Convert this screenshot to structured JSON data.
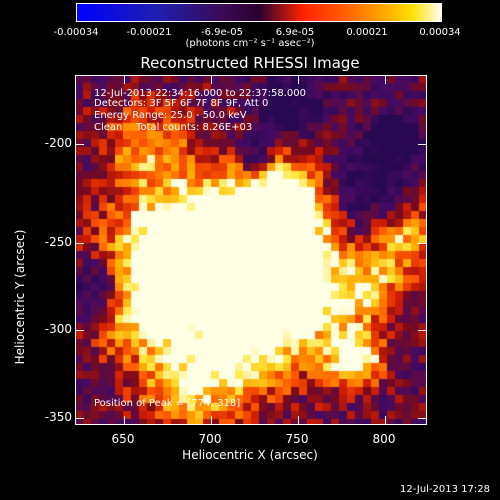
{
  "colorbar": {
    "ticks": [
      "-0.00034",
      "-0.00021",
      "-6.9e-05",
      "6.9e-05",
      "0.00021",
      "0.00034"
    ],
    "unit": "(photons cm⁻² s⁻¹ asec⁻²)",
    "gradient": [
      "#0000ff",
      "#3a0a55",
      "#ff2200",
      "#ff9900",
      "#ffe000",
      "#fffff0"
    ]
  },
  "title": "Reconstructed RHESSI Image",
  "info": {
    "time_range": "12-Jul-2013 22:34:16.000 to 22:37:58.000",
    "detectors": "Detectors: 3F 5F 6F 7F 8F 9F, Att 0",
    "energy": "Energy Range: 25.0 - 50.0 keV",
    "algorithm": "Clean",
    "total_counts": "Total counts: 8.26E+03",
    "peak": "Position of Peak = [774,-318]"
  },
  "axes": {
    "xlabel": "Heliocentric X (arcsec)",
    "ylabel": "Heliocentric Y (arcsec)",
    "xticks": [
      "650",
      "700",
      "750",
      "800"
    ],
    "yticks": [
      "-200",
      "-250",
      "-300",
      "-350"
    ]
  },
  "footer": "12-Jul-2013 17:28"
}
